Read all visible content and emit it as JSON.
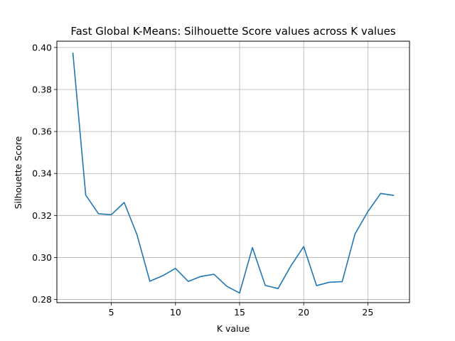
{
  "chart_data": {
    "type": "line",
    "title": "Fast Global K-Means: Silhouette Score values across K values",
    "xlabel": "K value",
    "ylabel": "Silhouette Score",
    "xlim": [
      0.75,
      28.25
    ],
    "ylim": [
      0.2785,
      0.403
    ],
    "xticks": [
      5,
      10,
      15,
      20,
      25
    ],
    "yticks": [
      0.28,
      0.3,
      0.32,
      0.34,
      0.36,
      0.38,
      0.4
    ],
    "grid": true,
    "legend": "none",
    "series": [
      {
        "color": "#1f77b4",
        "x": [
          2,
          3,
          4,
          5,
          6,
          7,
          8,
          9,
          10,
          11,
          12,
          13,
          14,
          15,
          16,
          17,
          18,
          19,
          20,
          21,
          22,
          23,
          24,
          25,
          26,
          27
        ],
        "y": [
          0.3973,
          0.3297,
          0.3208,
          0.3204,
          0.3262,
          0.3108,
          0.2887,
          0.2913,
          0.2948,
          0.2886,
          0.291,
          0.292,
          0.2863,
          0.2831,
          0.3047,
          0.2867,
          0.2852,
          0.296,
          0.3052,
          0.2866,
          0.2882,
          0.2885,
          0.3112,
          0.3218,
          0.3305,
          0.3296
        ]
      }
    ]
  }
}
